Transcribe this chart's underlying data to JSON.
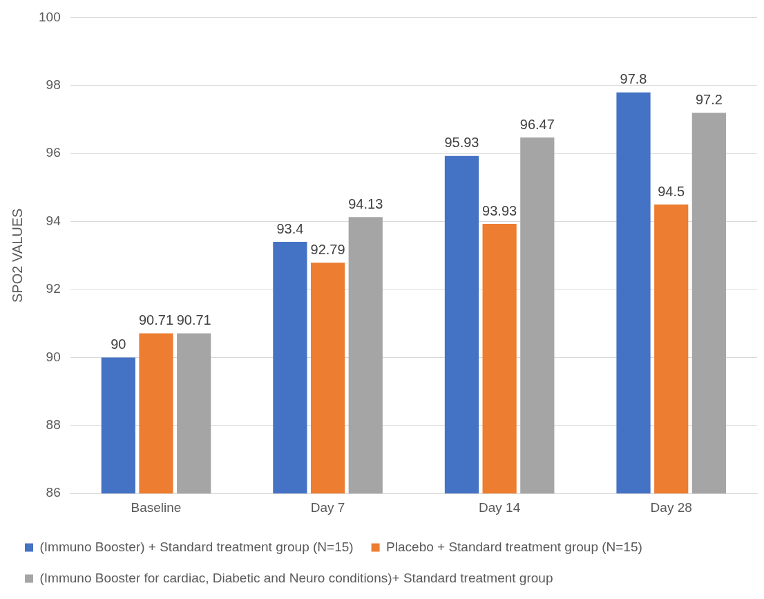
{
  "chart_data": {
    "type": "bar",
    "ylabel": "SPO2 VALUES",
    "categories": [
      "Baseline",
      "Day 7",
      "Day 14",
      "Day 28"
    ],
    "series": [
      {
        "name": "(Immuno Booster) + Standard treatment group (N=15)",
        "color": "#4472c4",
        "values": [
          90,
          93.4,
          95.93,
          97.8
        ]
      },
      {
        "name": "Placebo + Standard treatment group (N=15)",
        "color": "#ed7d31",
        "values": [
          90.71,
          92.79,
          93.93,
          94.5
        ]
      },
      {
        "name": "(Immuno Booster for cardiac, Diabetic and Neuro conditions)+ Standard treatment group",
        "color": "#a5a5a5",
        "values": [
          90.71,
          94.13,
          96.47,
          97.2
        ]
      }
    ],
    "ylim": [
      86,
      100
    ],
    "yticks": [
      86,
      88,
      90,
      92,
      94,
      96,
      98,
      100
    ],
    "grid": "y",
    "legend": "bottom",
    "data_labels": true
  }
}
